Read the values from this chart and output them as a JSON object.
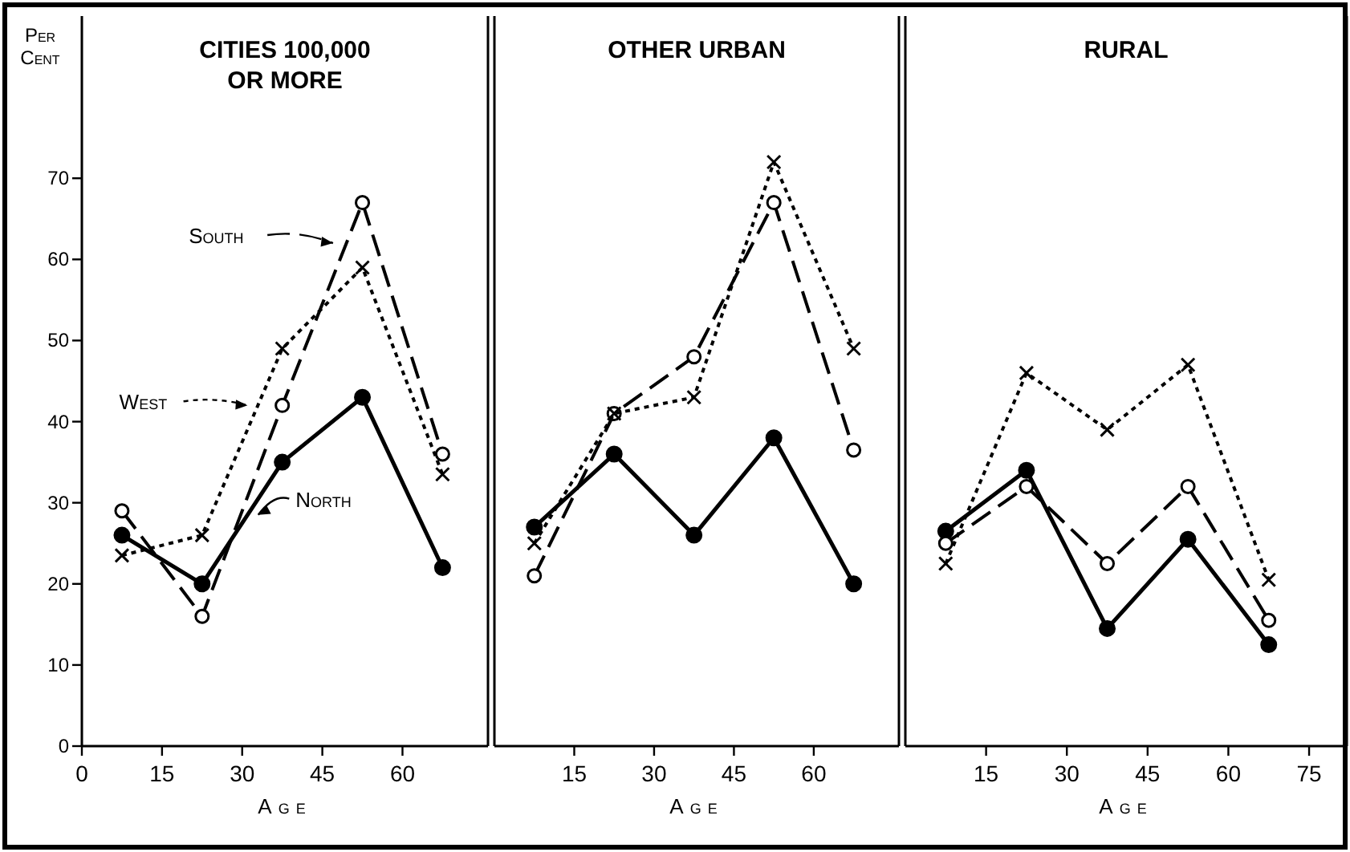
{
  "chart_data": [
    {
      "type": "line",
      "title": "CITIES 100,000 OR MORE",
      "xlabel": "Age",
      "ylabel": "Per Cent",
      "x": [
        7.5,
        22.5,
        37.5,
        52.5,
        67.5
      ],
      "xlim": [
        0,
        76
      ],
      "xticks": [
        0,
        15,
        30,
        45,
        60
      ],
      "ylim": [
        0,
        90
      ],
      "yticks": [
        0,
        10,
        20,
        30,
        40,
        50,
        60,
        70
      ],
      "grid": false,
      "legend": "left",
      "series": [
        {
          "name": "North",
          "color": "#000000",
          "line_style": "solid",
          "marker": "circle",
          "values": [
            26,
            20,
            35,
            43,
            22
          ]
        },
        {
          "name": "South",
          "color": "#000000",
          "line_style": "dashed",
          "marker": "circle",
          "values": [
            29,
            16,
            42,
            67,
            36
          ]
        },
        {
          "name": "West",
          "color": "#000000",
          "line_style": "dotted",
          "marker": "cross",
          "values": [
            23.5,
            26,
            49,
            59,
            33.5
          ]
        }
      ]
    },
    {
      "type": "line",
      "title": "OTHER URBAN",
      "xlabel": "Age",
      "x": [
        7.5,
        22.5,
        37.5,
        52.5,
        67.5
      ],
      "xlim": [
        0,
        76
      ],
      "xticks": [
        15,
        30,
        45,
        60
      ],
      "ylim": [
        0,
        90
      ],
      "tick_labels": "x",
      "grid": false,
      "legend": false,
      "series": [
        {
          "color": "#000000",
          "line_style": "solid",
          "marker": "circle",
          "values": [
            27,
            36,
            26,
            38,
            20
          ]
        },
        {
          "color": "#000000",
          "line_style": "dashed",
          "marker": "circle",
          "values": [
            21,
            41,
            48,
            67,
            36.5
          ]
        },
        {
          "color": "#000000",
          "line_style": "dotted",
          "marker": "cross",
          "values": [
            25,
            41,
            43,
            72,
            49
          ]
        }
      ]
    },
    {
      "type": "line",
      "title": "RURAL",
      "xlabel": "Age",
      "x": [
        7.5,
        22.5,
        37.5,
        52.5,
        67.5
      ],
      "xlim": [
        0,
        82
      ],
      "xticks": [
        15,
        30,
        45,
        60,
        75
      ],
      "ylim": [
        0,
        90
      ],
      "tick_labels": "x",
      "grid": false,
      "legend": false,
      "series": [
        {
          "color": "#000000",
          "line_style": "solid",
          "marker": "circle",
          "values": [
            26.5,
            34,
            14.5,
            25.5,
            12.5
          ]
        },
        {
          "color": "#000000",
          "line_style": "dashed",
          "marker": "circle",
          "values": [
            25,
            32,
            22.5,
            32,
            15.5
          ]
        },
        {
          "color": "#000000",
          "line_style": "dotted",
          "marker": "cross",
          "values": [
            22.5,
            46,
            39,
            47,
            20.5
          ]
        }
      ]
    }
  ]
}
